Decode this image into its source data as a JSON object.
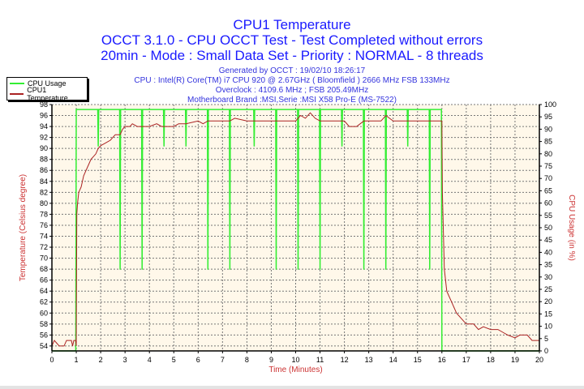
{
  "header": {
    "title": "CPU1 Temperature",
    "subtitle1": "OCCT 3.1.0 - CPU OCCT Test - Test Completed without errors",
    "subtitle2": "20min - Mode : Small Data Set - Priority : NORMAL - 8 threads",
    "generated": "Generated by OCCT : 19/02/10 18:26:17",
    "cpu": "CPU : Intel(R) Core(TM) i7 CPU 920 @ 2.67GHz ( Bloomfield ) 2666 MHz FSB 133MHz",
    "overclock": "Overclock : 4109.6 MHz ; FSB 205.49MHz",
    "motherboard": "Motherboard Brand :MSI,Serie :MSI X58 Pro-E (MS-7522)"
  },
  "colors": {
    "usage": "#33ee33",
    "temperature": "#aa2222",
    "plot_bg": "#fff8ea",
    "title": "#1a1aff",
    "axis_label": "#cc3333"
  },
  "chart_data": {
    "type": "line",
    "xlabel": "Time (Minutes)",
    "ylabel": "Temperature (Celsius degree)",
    "y2label": "CPU Usage (in %)",
    "xlim": [
      0,
      20
    ],
    "ylim": [
      53.1,
      98
    ],
    "y2lim": [
      0,
      100
    ],
    "xticks": [
      0,
      1,
      2,
      3,
      4,
      5,
      6,
      7,
      8,
      9,
      10,
      11,
      12,
      13,
      14,
      15,
      16,
      17,
      18,
      19,
      20
    ],
    "yticks": [
      54,
      56,
      58,
      60,
      62,
      64,
      66,
      68,
      70,
      72,
      74,
      76,
      78,
      80,
      82,
      84,
      86,
      88,
      90,
      92,
      94,
      96,
      98
    ],
    "y2ticks": [
      0,
      5,
      10,
      15,
      20,
      25,
      30,
      35,
      40,
      45,
      50,
      55,
      60,
      65,
      70,
      75,
      80,
      85,
      90,
      95,
      100
    ],
    "grid": true,
    "legend_position": "top-left",
    "series": [
      {
        "name": "CPU Usage",
        "axis": "right",
        "x": [
          0,
          0.98,
          1.0,
          1.88,
          1.9,
          1.92,
          2.78,
          2.8,
          2.82,
          3.68,
          3.7,
          3.72,
          4.58,
          4.6,
          4.62,
          5.48,
          5.5,
          5.52,
          6.38,
          6.4,
          6.42,
          7.28,
          7.3,
          7.32,
          8.28,
          8.3,
          8.32,
          9.18,
          9.2,
          9.22,
          10.08,
          10.1,
          10.12,
          10.98,
          11.0,
          11.02,
          11.88,
          11.9,
          11.92,
          12.78,
          12.8,
          12.82,
          13.68,
          13.7,
          13.72,
          14.58,
          14.6,
          14.62,
          15.48,
          15.5,
          15.52,
          15.98,
          16.0,
          20
        ],
        "y": [
          0,
          0,
          98,
          98,
          83,
          98,
          98,
          33,
          98,
          98,
          33,
          98,
          98,
          83,
          98,
          98,
          83,
          98,
          98,
          33,
          98,
          98,
          33,
          98,
          98,
          83,
          98,
          98,
          33,
          98,
          98,
          33,
          98,
          98,
          33,
          98,
          98,
          83,
          98,
          98,
          33,
          98,
          98,
          33,
          98,
          98,
          83,
          98,
          98,
          33,
          98,
          98,
          0,
          0
        ]
      },
      {
        "name": "CPU1 Temperature",
        "axis": "left",
        "x": [
          0,
          0.1,
          0.2,
          0.3,
          0.5,
          0.6,
          0.8,
          0.85,
          0.9,
          0.98,
          1.0,
          1.02,
          1.05,
          1.1,
          1.2,
          1.3,
          1.4,
          1.5,
          1.6,
          1.7,
          1.8,
          1.9,
          2.0,
          2.2,
          2.4,
          2.5,
          2.6,
          2.8,
          2.9,
          3.0,
          3.2,
          3.3,
          3.5,
          3.8,
          4.0,
          4.3,
          4.5,
          5.0,
          5.2,
          5.5,
          6.0,
          6.2,
          6.4,
          7.0,
          7.3,
          7.5,
          8.0,
          9.0,
          10.0,
          10.2,
          10.4,
          10.6,
          10.8,
          11.0,
          11.5,
          12.0,
          12.2,
          12.5,
          12.8,
          13.5,
          13.7,
          14.0,
          14.5,
          15.0,
          15.5,
          16.0,
          16.02,
          16.1,
          16.2,
          16.3,
          16.4,
          16.5,
          16.6,
          16.8,
          17.0,
          17.3,
          17.5,
          17.7,
          18.0,
          18.3,
          18.5,
          18.7,
          19.0,
          19.2,
          19.5,
          19.7,
          20.0
        ],
        "y": [
          54,
          55,
          54.5,
          54,
          54,
          55,
          55,
          54,
          55,
          55,
          54,
          78,
          80,
          82,
          83,
          85,
          86,
          87,
          88,
          88.5,
          89,
          90,
          90.5,
          91,
          91.5,
          92,
          92.5,
          92.5,
          93.5,
          94,
          94,
          94.5,
          94,
          94,
          94,
          94.5,
          94,
          94,
          94.5,
          94.5,
          95,
          94.5,
          95,
          95,
          95,
          95.5,
          95,
          95,
          95,
          96,
          95.5,
          96.5,
          95.5,
          95,
          95,
          95,
          94,
          94,
          95,
          95,
          96,
          95,
          95,
          95,
          95,
          95,
          82,
          68,
          64,
          63,
          62,
          61,
          60,
          59,
          58,
          58,
          57,
          57.5,
          57,
          57,
          56.5,
          56,
          55.5,
          56,
          56,
          55,
          55
        ]
      }
    ]
  }
}
